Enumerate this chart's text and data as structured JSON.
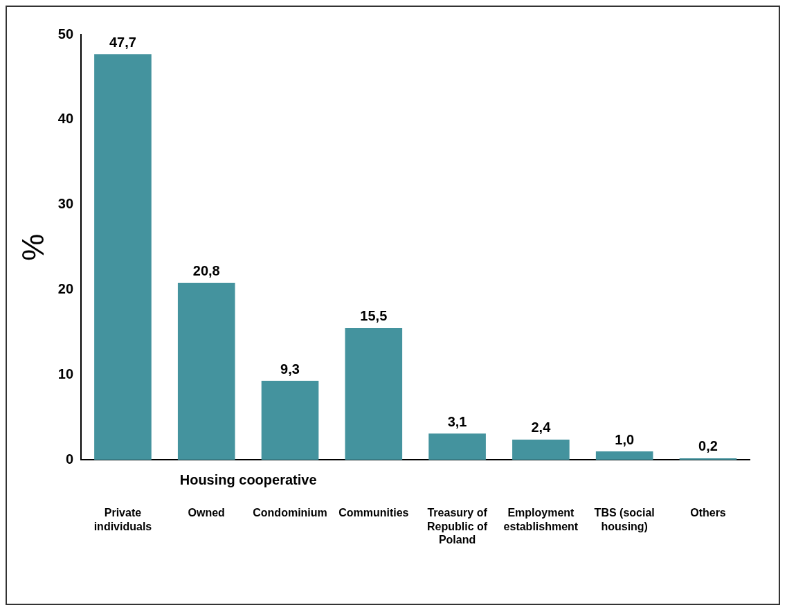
{
  "chart_data": {
    "type": "bar",
    "ylabel": "%",
    "categories": [
      "Private individuals",
      "Owned",
      "Condominium",
      "Communities",
      "Treasury of Republic of Poland",
      "Employment establishment",
      "TBS (social housing)",
      "Others"
    ],
    "values": [
      47.7,
      20.8,
      9.3,
      15.5,
      3.1,
      2.4,
      1.0,
      0.2
    ],
    "value_labels": [
      "47,7",
      "20,8",
      "9,3",
      "15,5",
      "3,1",
      "2,4",
      "1,0",
      "0,2"
    ],
    "color": "#44939e",
    "ylim": [
      0,
      50
    ],
    "yticks": [
      0,
      10,
      20,
      30,
      40,
      50
    ],
    "grid": false,
    "legend": false,
    "annotations": [
      "Housing cooperative"
    ]
  }
}
